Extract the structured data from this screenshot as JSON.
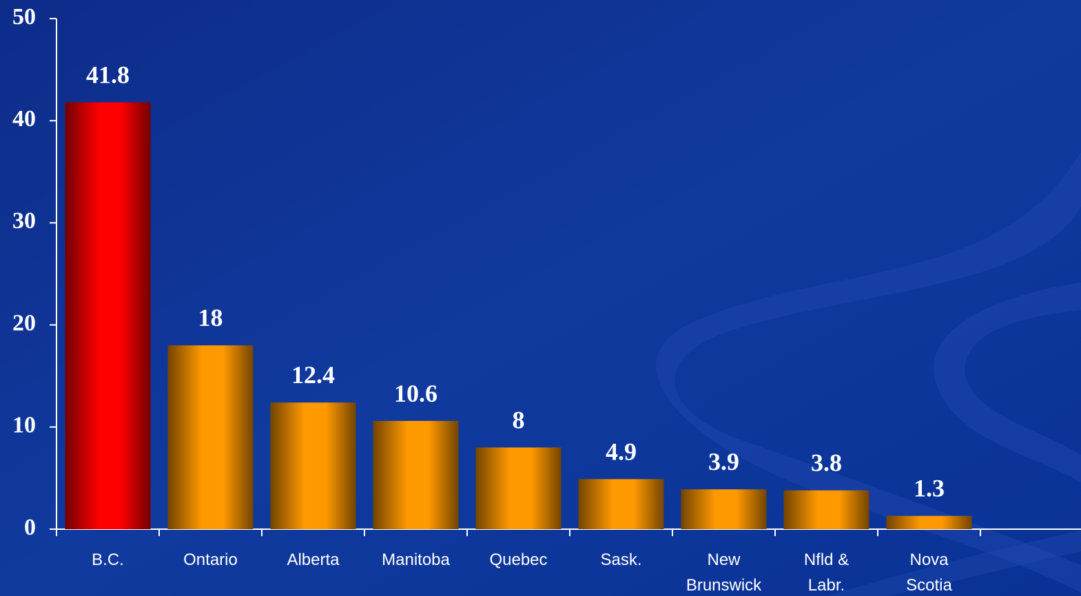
{
  "chart_data": {
    "type": "bar",
    "categories": [
      "B.C.",
      "Ontario",
      "Alberta",
      "Manitoba",
      "Quebec",
      "Sask.",
      "New Brunswick",
      "Nfld & Labr.",
      "Nova Scotia"
    ],
    "values": [
      41.8,
      18,
      12.4,
      10.6,
      8,
      4.9,
      3.9,
      3.8,
      1.3
    ],
    "colors": [
      "#ff0000",
      "#ff9900",
      "#ff9900",
      "#ff9900",
      "#ff9900",
      "#ff9900",
      "#ff9900",
      "#ff9900",
      "#ff9900"
    ],
    "ylim": [
      0,
      50
    ],
    "yticks": [
      0,
      10,
      20,
      30,
      40,
      50
    ],
    "grid": false
  }
}
